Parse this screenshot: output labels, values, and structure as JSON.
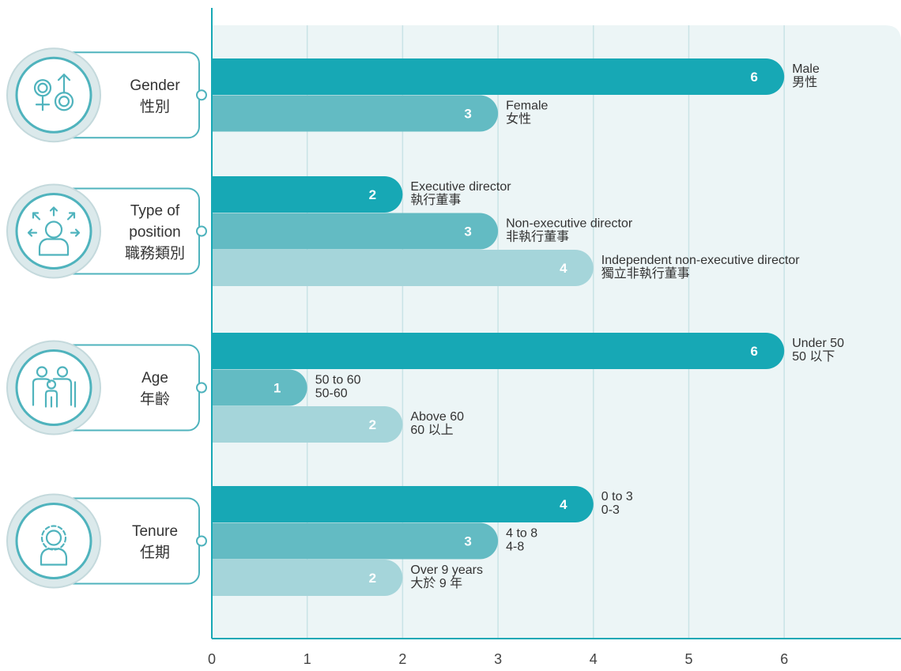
{
  "chart_data": {
    "type": "bar",
    "orientation": "horizontal",
    "xlim": [
      0,
      7
    ],
    "x_ticks": [
      "0",
      "1",
      "2",
      "3",
      "4",
      "5",
      "6"
    ],
    "grid": true,
    "colors": {
      "shade1": "#17a8b5",
      "shade2": "#63bbc3",
      "shade3": "#a5d5da",
      "plot_bg": "#ecf5f6",
      "icon_ring": "#4fb3bd"
    },
    "groups": [
      {
        "label_en": "Gender",
        "label_zh": "性別",
        "icon": "gender-icon",
        "bars": [
          {
            "value": 6,
            "value_label": "6",
            "label_en": "Male",
            "label_zh": "男性"
          },
          {
            "value": 3,
            "value_label": "3",
            "label_en": "Female",
            "label_zh": "女性"
          }
        ]
      },
      {
        "label_en": "Type of position",
        "label_zh": "職務類別",
        "icon": "person-arrows-icon",
        "bars": [
          {
            "value": 2,
            "value_label": "2",
            "label_en": "Executive director",
            "label_zh": "執行董事"
          },
          {
            "value": 3,
            "value_label": "3",
            "label_en": "Non-executive director",
            "label_zh": "非執行董事"
          },
          {
            "value": 4,
            "value_label": "4",
            "label_en": "Independent non-executive director",
            "label_zh": "獨立非執行董事"
          }
        ]
      },
      {
        "label_en": "Age",
        "label_zh": "年齡",
        "icon": "family-icon",
        "bars": [
          {
            "value": 6,
            "value_label": "6",
            "label_en": "Under 50",
            "label_zh": "50 以下"
          },
          {
            "value": 1,
            "value_label": "1",
            "label_en": "50 to 60",
            "label_zh": "50-60"
          },
          {
            "value": 2,
            "value_label": "2",
            "label_en": "Above 60",
            "label_zh": "60 以上"
          }
        ]
      },
      {
        "label_en": "Tenure",
        "label_zh": "任期",
        "icon": "person-gear-icon",
        "bars": [
          {
            "value": 4,
            "value_label": "4",
            "label_en": "0 to 3",
            "label_zh": "0-3"
          },
          {
            "value": 3,
            "value_label": "3",
            "label_en": "4 to 8",
            "label_zh": "4-8"
          },
          {
            "value": 2,
            "value_label": "2",
            "label_en": "Over 9 years",
            "label_zh": "大於 9 年"
          }
        ]
      }
    ]
  }
}
